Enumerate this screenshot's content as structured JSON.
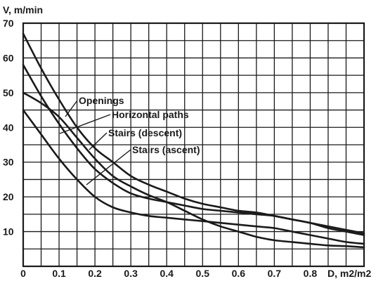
{
  "chart_data": {
    "type": "line",
    "title": "",
    "ylabel": "V, m/min",
    "xlabel": "D, m2/m2",
    "xlim": [
      0,
      0.95
    ],
    "ylim": [
      0,
      70
    ],
    "x_ticks": [
      "0",
      "0.1",
      "0.2",
      "0.3",
      "0.4",
      "0.5",
      "0.6",
      "0.7",
      "0.8"
    ],
    "y_ticks": [
      "10",
      "20",
      "30",
      "40",
      "50",
      "60",
      "70"
    ],
    "grid": true,
    "series": [
      {
        "name": "Openings",
        "x": [
          0,
          0.05,
          0.1,
          0.15,
          0.2,
          0.25,
          0.3,
          0.35,
          0.4,
          0.45,
          0.5,
          0.55,
          0.6,
          0.65,
          0.7,
          0.75,
          0.8,
          0.85,
          0.9,
          0.95
        ],
        "y": [
          67,
          57,
          48,
          40,
          34,
          30,
          26,
          23.5,
          21.5,
          19.5,
          18,
          17,
          16,
          15.5,
          14.5,
          13.5,
          12.5,
          11.5,
          10.5,
          9.5
        ]
      },
      {
        "name": "Horizontal paths",
        "x": [
          0,
          0.05,
          0.1,
          0.15,
          0.2,
          0.25,
          0.3,
          0.35,
          0.4,
          0.45,
          0.5,
          0.55,
          0.6,
          0.65,
          0.7,
          0.75,
          0.8,
          0.85,
          0.9,
          0.95
        ],
        "y": [
          58,
          49,
          41,
          34,
          28,
          24,
          21,
          19.5,
          18.5,
          17.5,
          16.5,
          16,
          15.5,
          15,
          14.5,
          13.5,
          12.5,
          11,
          10,
          9
        ]
      },
      {
        "name": "Stairs (descent)",
        "x": [
          0,
          0.05,
          0.1,
          0.15,
          0.2,
          0.25,
          0.3,
          0.35,
          0.4,
          0.45,
          0.5,
          0.55,
          0.6,
          0.65,
          0.7,
          0.75,
          0.8,
          0.85,
          0.9,
          0.95
        ],
        "y": [
          50,
          47,
          43,
          37,
          31,
          26,
          23,
          20.5,
          18.5,
          16,
          13.5,
          11.5,
          10,
          8.5,
          7.5,
          7,
          6.5,
          6,
          5.8,
          5.5
        ]
      },
      {
        "name": "Stairs (ascent)",
        "x": [
          0,
          0.05,
          0.1,
          0.15,
          0.2,
          0.25,
          0.3,
          0.35,
          0.4,
          0.45,
          0.5,
          0.55,
          0.6,
          0.65,
          0.7,
          0.75,
          0.8,
          0.85,
          0.9,
          0.95
        ],
        "y": [
          45,
          38,
          31,
          25,
          20,
          17,
          15.5,
          14.5,
          14,
          13.5,
          13,
          12.5,
          12,
          11.5,
          11,
          10,
          9,
          8,
          7,
          6.5
        ]
      }
    ],
    "annotations": [
      "Openings",
      "Horizontal paths",
      "Stairs (descent)",
      "Stairs (ascent)"
    ]
  }
}
